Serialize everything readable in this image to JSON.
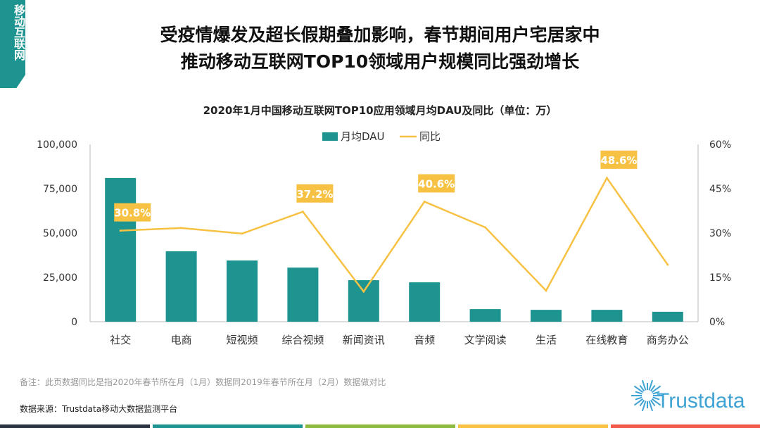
{
  "side_tag": "移动互联网",
  "header": {
    "line1": "受疫情爆发及超长假期叠加影响，春节期间用户宅居家中",
    "line2": "推动移动互联网TOP10领域用户规模同比强劲增长"
  },
  "chart_data": {
    "type": "bar+line",
    "title": "2020年1月中国移动互联网TOP10应用领域月均DAU及同比（单位：万）",
    "categories": [
      "社交",
      "电商",
      "短视频",
      "综合视频",
      "新闻资讯",
      "音频",
      "文学阅读",
      "生活",
      "在线教育",
      "商务办公"
    ],
    "series": [
      {
        "name": "月均DAU",
        "type": "bar",
        "axis": "left",
        "color": "#1e9490",
        "values": [
          81000,
          39700,
          34500,
          30500,
          23400,
          22200,
          7100,
          6700,
          6700,
          5600
        ]
      },
      {
        "name": "同比",
        "type": "line",
        "axis": "right",
        "color": "#f7c244",
        "values": [
          30.8,
          31.7,
          29.8,
          37.2,
          10.2,
          40.6,
          31.9,
          10.5,
          48.6,
          19.3
        ]
      }
    ],
    "data_labels": [
      {
        "index": 0,
        "text": "30.8%"
      },
      {
        "index": 3,
        "text": "37.2%"
      },
      {
        "index": 5,
        "text": "40.6%"
      },
      {
        "index": 8,
        "text": "48.6%"
      }
    ],
    "left_axis": {
      "ylim": [
        0,
        100000
      ],
      "ticks": [
        "0",
        "25,000",
        "50,000",
        "75,000",
        "100,000"
      ]
    },
    "right_axis": {
      "ylim": [
        0,
        60
      ],
      "ticks": [
        "0%",
        "15%",
        "30%",
        "45%",
        "60%"
      ]
    },
    "legend": "top-center",
    "grid": false
  },
  "footer": {
    "note": "备注：此页数据同比是指2020年春节所在月（1月）数据同2019年春节所在月（2月）数据做对比",
    "source": "数据来源：Trustdata移动大数据监测平台",
    "logo": "Trustdata"
  },
  "bottom_colors": [
    "#2b3342",
    "#1e9490",
    "#8dbb3f",
    "#f7c244",
    "#f2594b"
  ]
}
